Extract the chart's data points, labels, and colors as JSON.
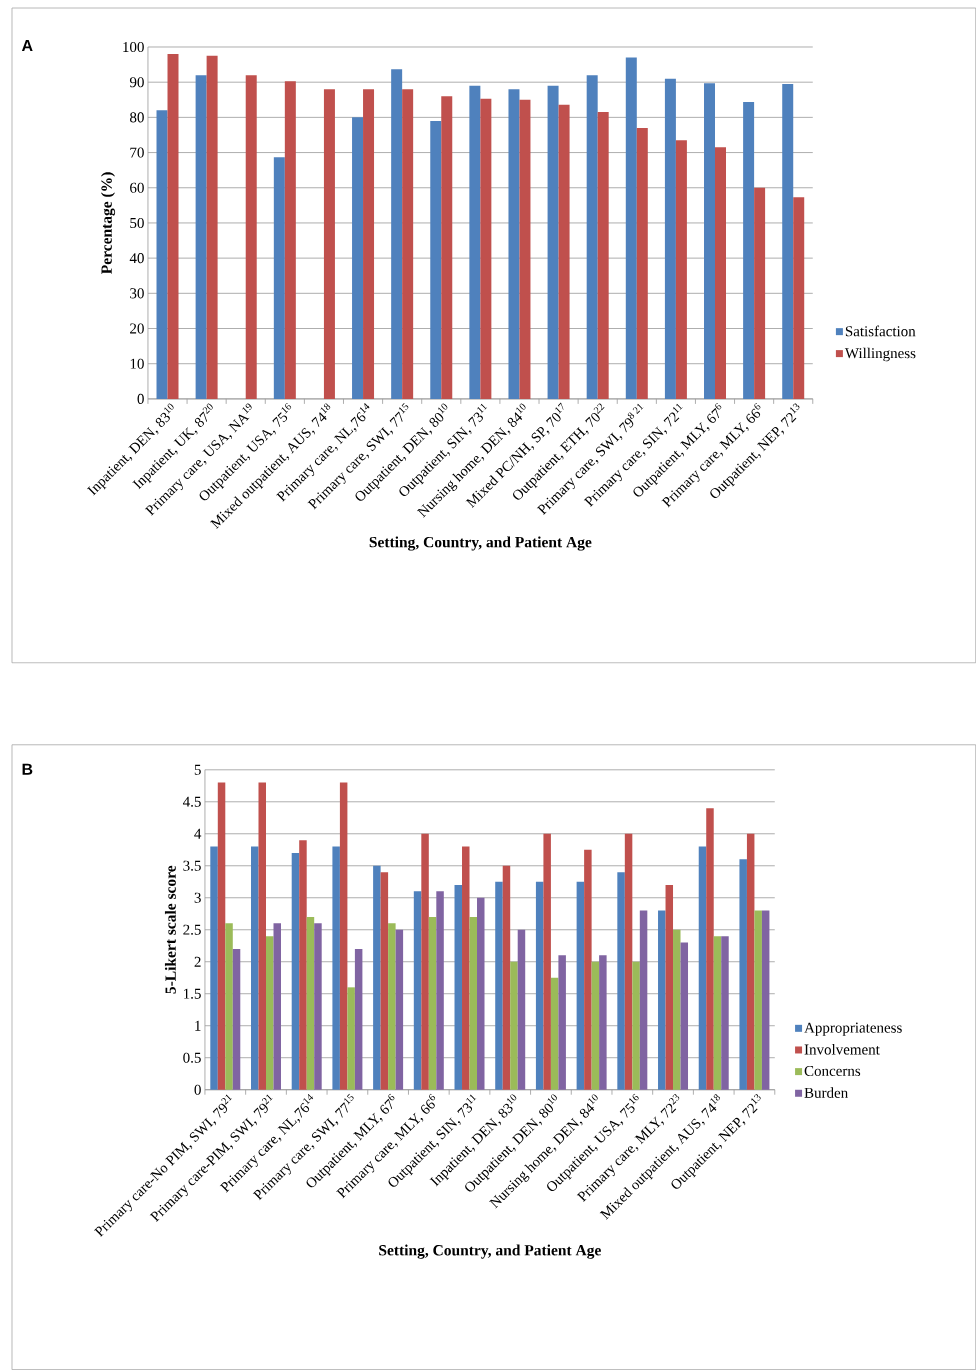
{
  "chart_data": [
    {
      "type": "bar",
      "xlabel": "Setting, Country, and Patient Age",
      "ylabel": "Percentage (%)",
      "annotations": [
        "A"
      ],
      "categories": [
        "Inpatient, DEN, 83$^{10}$",
        "Inpatient, UK, 87$^{20}$",
        "Primary care, USA, NA$^{19}$",
        "Outpatient, USA, 75$^{16}$",
        "Mixed outpatient, AUS, 74$^{18}$",
        "Primary care, NL,76$^{14}$",
        "Primary care, SWI, 77$^{15}$",
        "Outpatient, DEN, 80$^{10}$",
        "Outpatient, SIN, 73$^{11}$",
        "Nursing home, DEN, 84$^{10}$",
        "Mixed PC/NH, SP, 70$^{17}$",
        "Outpatient, ETH, 70$^{22}$",
        "Primary care, SWI, 79$^{8 21}$",
        "Primary care, SIN, 72$^{11}$",
        "Outpatient, MLY, 67$^{6}$",
        "Primary care, MLY, 66$^{6}$",
        "Outpatient, NEP, 72$^{13}$"
      ],
      "series": [
        {
          "name": "Satisfaction",
          "color": "#4f81bd",
          "values": [
            82,
            92,
            null,
            68.7,
            null,
            80,
            93.7,
            79,
            89,
            88,
            89,
            92,
            97,
            91,
            89.7,
            84.4,
            89.5
          ]
        },
        {
          "name": "Willingness",
          "color": "#c0504d",
          "values": [
            98,
            97.5,
            92,
            90.3,
            88,
            88,
            88,
            86,
            85.3,
            85,
            83.6,
            81.5,
            77,
            73.5,
            71.5,
            60,
            57.3
          ]
        }
      ],
      "ylim": [
        0,
        100
      ],
      "yticks": [
        0,
        10,
        20,
        30,
        40,
        50,
        60,
        70,
        80,
        90,
        100
      ],
      "grid": "y",
      "legend": "right"
    },
    {
      "type": "bar",
      "xlabel": "Setting, Country, and Patient Age",
      "ylabel": "5-Likert scale score",
      "annotations": [
        "B"
      ],
      "categories": [
        "Primary care-No PIM, SWI, 79$^{21}$",
        "Primary care-PIM, SWI, 79$^{21}$",
        "Primary care, NL,76$^{14}$",
        "Primary care, SWI, 77$^{15}$",
        "Outpatient, MLY, 67$^{6}$",
        "Primary care, MLY, 66$^{6}$",
        "Outpatient, SIN, 73$^{11}$",
        "Inpatient, DEN, 83$^{10}$",
        "Outpatient, DEN, 80$^{10}$",
        "Nursing home, DEN, 84$^{10}$",
        "Outpatient, USA, 75$^{16}$",
        "Primary care, MLY, 72$^{23}$",
        "Mixed outpatient, AUS, 74$^{18}$",
        "Outpatient, NEP, 72$^{13}$"
      ],
      "series": [
        {
          "name": "Appropriateness",
          "color": "#4f81bd",
          "values": [
            3.8,
            3.8,
            3.7,
            3.8,
            3.5,
            3.1,
            3.2,
            3.25,
            3.25,
            3.25,
            3.4,
            2.8,
            3.8,
            3.6
          ]
        },
        {
          "name": "Involvement",
          "color": "#c0504d",
          "values": [
            4.8,
            4.8,
            3.9,
            4.8,
            3.4,
            4.0,
            3.8,
            3.5,
            4.0,
            3.75,
            4.0,
            3.2,
            4.4,
            4.0
          ]
        },
        {
          "name": "Concerns",
          "color": "#9bbb59",
          "values": [
            2.6,
            2.4,
            2.7,
            1.6,
            2.6,
            2.7,
            2.7,
            2.0,
            1.75,
            2.0,
            2.0,
            2.5,
            2.4,
            2.8
          ]
        },
        {
          "name": "Burden",
          "color": "#8064a2",
          "values": [
            2.2,
            2.6,
            2.6,
            2.2,
            2.5,
            3.1,
            3.0,
            2.5,
            2.1,
            2.1,
            2.8,
            2.3,
            2.4,
            2.8
          ]
        }
      ],
      "ylim": [
        0,
        5
      ],
      "yticks": [
        0,
        0.5,
        1,
        1.5,
        2,
        2.5,
        3,
        3.5,
        4,
        4.5,
        5
      ],
      "grid": "y",
      "legend": "right"
    }
  ]
}
